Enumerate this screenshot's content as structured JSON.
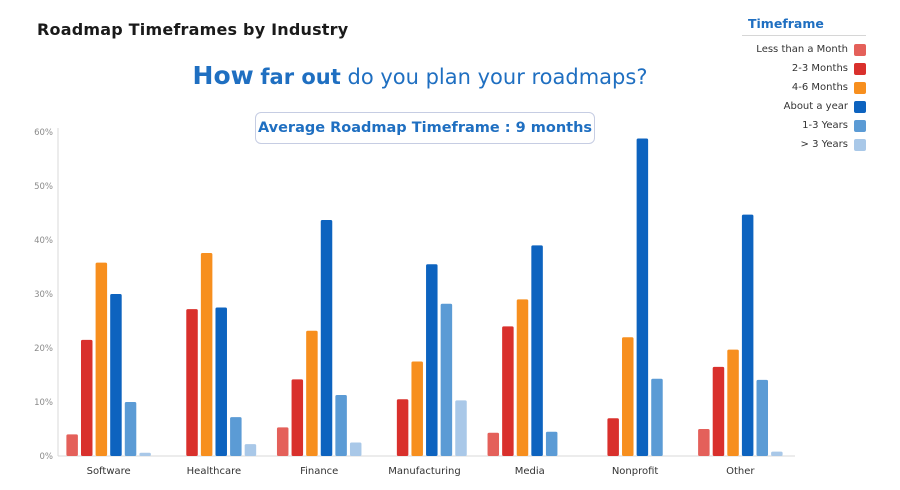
{
  "title": "Roadmap Timeframes by Industry",
  "headline": {
    "how": "How",
    "far_out": "far out",
    "rest": "do you plan your roadmaps?"
  },
  "average_box": "Average Roadmap Timeframe : 9 months",
  "legend": {
    "title": "Timeframe",
    "items": [
      {
        "label": "Less than a Month",
        "color": "#e4605a"
      },
      {
        "label": "2-3 Months",
        "color": "#d9302c"
      },
      {
        "label": "4-6 Months",
        "color": "#f78f1e"
      },
      {
        "label": "About a year",
        "color": "#0d63bf"
      },
      {
        "label": "1-3 Years",
        "color": "#5b9bd5"
      },
      {
        "label": "> 3 Years",
        "color": "#a9c8e8"
      }
    ]
  },
  "chart_data": {
    "type": "bar",
    "categories": [
      "Software",
      "Healthcare",
      "Finance",
      "Manufacturing",
      "Media",
      "Nonprofit",
      "Other"
    ],
    "y_ticks": [
      "0%",
      "10%",
      "20%",
      "30%",
      "40%",
      "50%",
      "60%"
    ],
    "ylim": [
      0,
      60
    ],
    "grid": false,
    "legend_position": "top-right",
    "series": [
      {
        "name": "Less than a Month",
        "color": "#e4605a",
        "values": [
          4,
          0,
          5.3,
          0,
          4.3,
          0,
          5
        ]
      },
      {
        "name": "2-3 Months",
        "color": "#d9302c",
        "values": [
          21.5,
          27.2,
          14.2,
          10.5,
          24,
          7,
          16.5
        ]
      },
      {
        "name": "4-6 Months",
        "color": "#f78f1e",
        "values": [
          35.8,
          37.6,
          23.2,
          17.5,
          29,
          22,
          19.7
        ]
      },
      {
        "name": "About a year",
        "color": "#0d63bf",
        "values": [
          30,
          27.5,
          43.7,
          35.5,
          39,
          58.8,
          44.7
        ]
      },
      {
        "name": "1-3 Years",
        "color": "#5b9bd5",
        "values": [
          10,
          7.2,
          11.3,
          28.2,
          4.5,
          14.3,
          14.1
        ]
      },
      {
        "name": "> 3 Years",
        "color": "#a9c8e8",
        "values": [
          0.6,
          2.2,
          2.5,
          10.3,
          0,
          0,
          0.8
        ]
      }
    ]
  }
}
